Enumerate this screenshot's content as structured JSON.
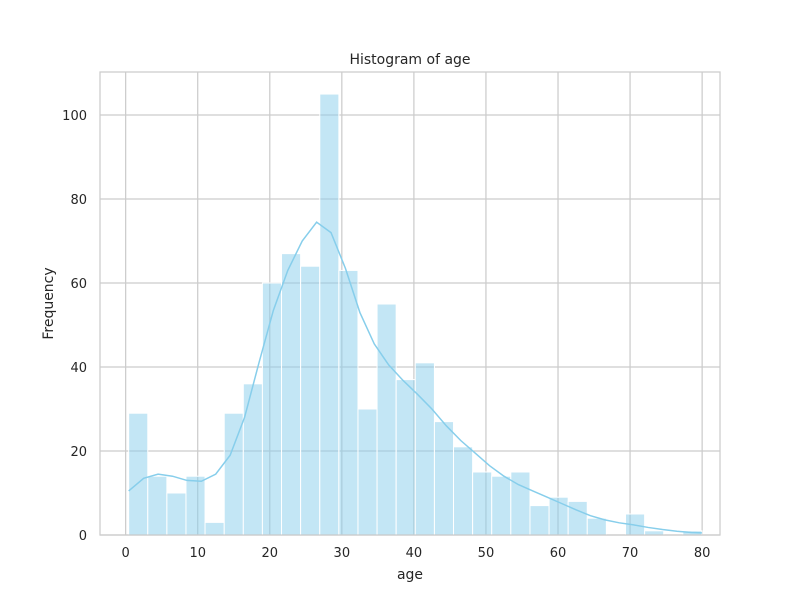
{
  "chart_data": {
    "type": "bar",
    "title": "Histogram of age",
    "xlabel": "age",
    "ylabel": "Frequency",
    "xlim": [
      -3.56,
      82.48
    ],
    "ylim": [
      0,
      110.25
    ],
    "xticks": [
      0,
      10,
      20,
      30,
      40,
      50,
      60,
      70,
      80
    ],
    "yticks": [
      0,
      20,
      40,
      60,
      80,
      100
    ],
    "grid": true,
    "bar_color": "#87ceeb",
    "bins": [
      {
        "x0": 0.42,
        "x1": 3.07,
        "count": 29
      },
      {
        "x0": 3.07,
        "x1": 5.72,
        "count": 14
      },
      {
        "x0": 5.72,
        "x1": 8.37,
        "count": 10
      },
      {
        "x0": 8.37,
        "x1": 11.02,
        "count": 14
      },
      {
        "x0": 11.02,
        "x1": 13.68,
        "count": 3
      },
      {
        "x0": 13.68,
        "x1": 16.33,
        "count": 29
      },
      {
        "x0": 16.33,
        "x1": 18.98,
        "count": 36
      },
      {
        "x0": 18.98,
        "x1": 21.63,
        "count": 60
      },
      {
        "x0": 21.63,
        "x1": 24.28,
        "count": 67
      },
      {
        "x0": 24.28,
        "x1": 26.94,
        "count": 64
      },
      {
        "x0": 26.94,
        "x1": 29.59,
        "count": 105
      },
      {
        "x0": 29.59,
        "x1": 32.24,
        "count": 63
      },
      {
        "x0": 32.24,
        "x1": 34.89,
        "count": 30
      },
      {
        "x0": 34.89,
        "x1": 37.54,
        "count": 55
      },
      {
        "x0": 37.54,
        "x1": 40.19,
        "count": 37
      },
      {
        "x0": 40.19,
        "x1": 42.85,
        "count": 41
      },
      {
        "x0": 42.85,
        "x1": 45.5,
        "count": 27
      },
      {
        "x0": 45.5,
        "x1": 48.15,
        "count": 21
      },
      {
        "x0": 48.15,
        "x1": 50.8,
        "count": 15
      },
      {
        "x0": 50.8,
        "x1": 53.45,
        "count": 14
      },
      {
        "x0": 53.45,
        "x1": 56.11,
        "count": 15
      },
      {
        "x0": 56.11,
        "x1": 58.76,
        "count": 7
      },
      {
        "x0": 58.76,
        "x1": 61.41,
        "count": 9
      },
      {
        "x0": 61.41,
        "x1": 64.06,
        "count": 8
      },
      {
        "x0": 64.06,
        "x1": 66.71,
        "count": 4
      },
      {
        "x0": 66.71,
        "x1": 69.37,
        "count": 0
      },
      {
        "x0": 69.37,
        "x1": 72.02,
        "count": 5
      },
      {
        "x0": 72.02,
        "x1": 74.67,
        "count": 1
      },
      {
        "x0": 74.67,
        "x1": 77.32,
        "count": 0
      },
      {
        "x0": 77.32,
        "x1": 79.97,
        "count": 1
      }
    ],
    "kde": {
      "color": "#87ceeb",
      "x": [
        0.42,
        2.5,
        4.5,
        6.5,
        8.5,
        10.5,
        12.5,
        14.5,
        16.5,
        18.5,
        20.5,
        22.5,
        24.5,
        26.5,
        28.5,
        30.5,
        32.5,
        34.5,
        36.5,
        38.5,
        40.5,
        42.5,
        44.5,
        46.5,
        48.5,
        50.5,
        52.5,
        54.5,
        56.5,
        58.5,
        60.5,
        62.5,
        64.5,
        66.5,
        68.5,
        70.5,
        72.5,
        74.5,
        76.5,
        78.5,
        79.97
      ],
      "y": [
        10.5,
        13.5,
        14.5,
        14.0,
        13.0,
        12.8,
        14.5,
        19.0,
        28.0,
        41.0,
        53.5,
        63.0,
        70.0,
        74.5,
        72.0,
        63.5,
        53.0,
        45.5,
        40.5,
        36.8,
        33.5,
        30.0,
        26.0,
        22.5,
        19.5,
        16.5,
        14.0,
        12.0,
        10.5,
        9.0,
        7.5,
        6.0,
        4.6,
        3.6,
        2.9,
        2.4,
        1.8,
        1.3,
        0.9,
        0.6,
        0.5
      ]
    }
  }
}
